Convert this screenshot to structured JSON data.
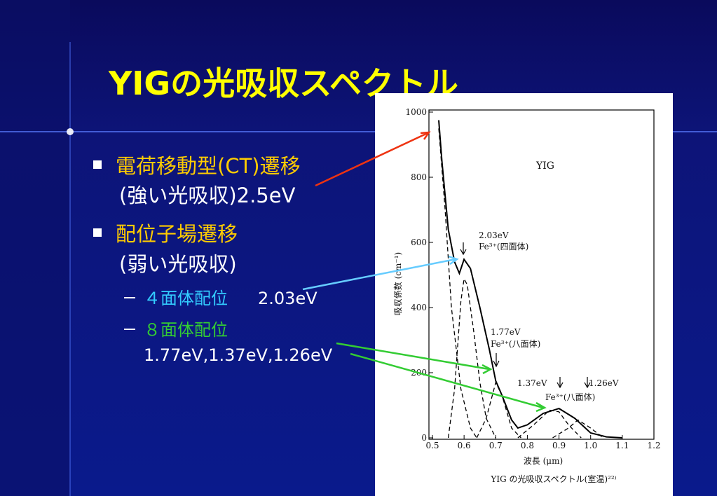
{
  "slide": {
    "title": "YIGの光吸収スペクトル",
    "bullets": [
      {
        "text": "電荷移動型(CT)遷移",
        "detail": "(強い光吸収)2.5eV"
      },
      {
        "text": "配位子場遷移",
        "detail": "(弱い光吸収)",
        "sub": [
          {
            "label": "４面体配位",
            "value": "2.03eV"
          },
          {
            "label": "８面体配位",
            "value": "1.77eV,1.37eV,1.26eV"
          }
        ]
      }
    ]
  },
  "chart_data": {
    "type": "line",
    "title": "YIG",
    "caption": "YIG の光吸収スペクトル(室温)²²⁾",
    "x_label": "波長 (μm)",
    "y_label": "吸収係数 (cm⁻¹)",
    "xlim": [
      0.5,
      1.2
    ],
    "xticks": [
      0.5,
      0.6,
      0.7,
      0.8,
      0.9,
      {
        "value": 1.0,
        "label": "1.0"
      },
      1.1,
      1.2
    ],
    "ylim": [
      0,
      1000
    ],
    "yticks": [
      0,
      200,
      400,
      600,
      800,
      1000
    ],
    "annotations": [
      "2.03eV",
      "Fe³⁺(四面体)",
      "1.77eV",
      "Fe³⁺(八面体)",
      "1.37eV",
      "1.26eV",
      "Fe³⁺(八面体)"
    ],
    "series": [
      {
        "color": "#000000",
        "dash": "solid",
        "x": [
          0.52,
          0.53,
          0.55,
          0.57,
          0.585,
          0.6,
          0.62,
          0.65,
          0.68,
          0.7,
          0.72,
          0.75,
          0.77,
          0.8,
          0.85,
          0.9,
          0.95,
          1.0,
          1.05,
          1.1
        ],
        "values": [
          975,
          850,
          640,
          540,
          505,
          548,
          520,
          400,
          270,
          175,
          130,
          55,
          30,
          40,
          75,
          90,
          60,
          15,
          3,
          0
        ]
      },
      {
        "color": "#000000",
        "dash": "dashed",
        "x": [
          0.52,
          0.54,
          0.56,
          0.59,
          0.62,
          0.64
        ],
        "values": [
          950,
          700,
          400,
          150,
          30,
          0
        ]
      },
      {
        "color": "#000000",
        "dash": "dashed",
        "x": [
          0.55,
          0.57,
          0.59,
          0.6,
          0.61,
          0.63,
          0.65,
          0.67,
          0.7
        ],
        "values": [
          0,
          150,
          420,
          488,
          470,
          330,
          170,
          60,
          0
        ]
      },
      {
        "color": "#000000",
        "dash": "dashed",
        "x": [
          0.64,
          0.67,
          0.7,
          0.72,
          0.75,
          0.78
        ],
        "values": [
          0,
          60,
          170,
          130,
          30,
          0
        ]
      },
      {
        "color": "#000000",
        "dash": "dashed",
        "x": [
          0.77,
          0.82,
          0.87,
          0.9,
          0.93,
          0.97
        ],
        "values": [
          0,
          40,
          85,
          80,
          40,
          0
        ]
      },
      {
        "color": "#000000",
        "dash": "dashed",
        "x": [
          0.88,
          0.93,
          0.96,
          1.0,
          1.04
        ],
        "values": [
          0,
          30,
          55,
          30,
          0
        ]
      }
    ]
  }
}
